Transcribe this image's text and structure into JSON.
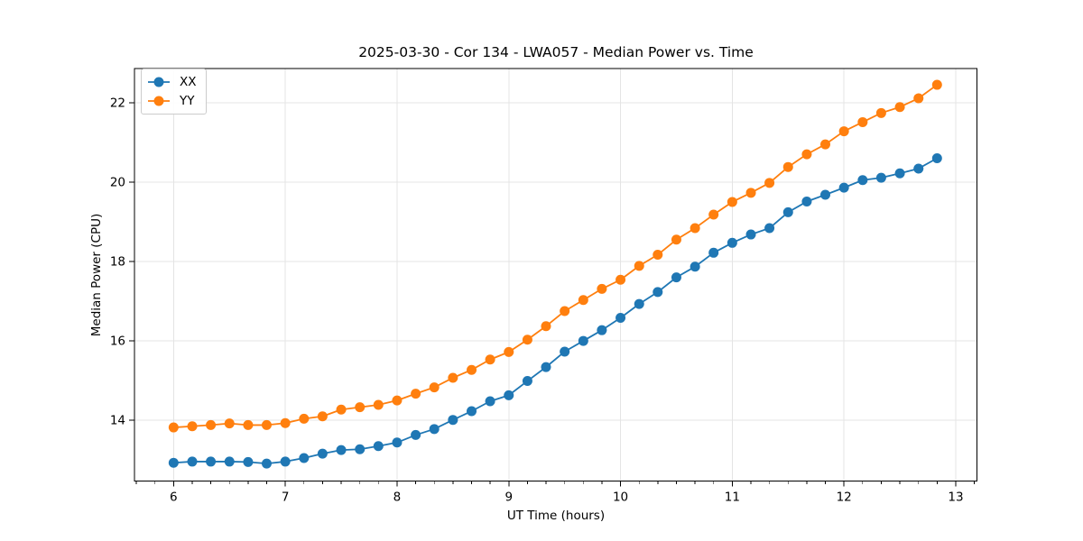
{
  "chart_data": {
    "type": "line",
    "title": "2025-03-30 - Cor 134 - LWA057 - Median Power vs. Time",
    "xlabel": "UT Time (hours)",
    "ylabel": "Median Power (CPU)",
    "xlim": [
      5.65,
      13.19
    ],
    "ylim": [
      12.47,
      22.86
    ],
    "xticks": [
      6,
      7,
      8,
      9,
      10,
      11,
      12,
      13
    ],
    "yticks": [
      14,
      16,
      18,
      20,
      22
    ],
    "minor_tick_step_x": 0.16667,
    "grid": true,
    "legend_position": "upper left",
    "x": [
      6.0,
      6.167,
      6.333,
      6.5,
      6.667,
      6.833,
      7.0,
      7.167,
      7.333,
      7.5,
      7.667,
      7.833,
      8.0,
      8.167,
      8.333,
      8.5,
      8.667,
      8.833,
      9.0,
      9.167,
      9.333,
      9.5,
      9.667,
      9.833,
      10.0,
      10.167,
      10.333,
      10.5,
      10.667,
      10.833,
      11.0,
      11.167,
      11.333,
      11.5,
      11.667,
      11.833,
      12.0,
      12.167,
      12.333,
      12.5,
      12.667,
      12.833
    ],
    "series": [
      {
        "name": "XX",
        "color": "#1f77b4",
        "values": [
          12.93,
          12.96,
          12.96,
          12.96,
          12.95,
          12.91,
          12.96,
          13.05,
          13.16,
          13.25,
          13.27,
          13.35,
          13.44,
          13.63,
          13.78,
          14.01,
          14.23,
          14.48,
          14.63,
          14.99,
          15.34,
          15.73,
          16.0,
          16.27,
          16.58,
          16.93,
          17.23,
          17.6,
          17.87,
          18.22,
          18.47,
          18.68,
          18.84,
          19.24,
          19.51,
          19.68,
          19.86,
          20.05,
          20.11,
          20.22,
          20.34,
          20.6
        ]
      },
      {
        "name": "YY",
        "color": "#ff7f0e",
        "values": [
          13.82,
          13.85,
          13.88,
          13.92,
          13.88,
          13.88,
          13.93,
          14.04,
          14.1,
          14.27,
          14.33,
          14.39,
          14.5,
          14.67,
          14.83,
          15.07,
          15.27,
          15.53,
          15.72,
          16.03,
          16.37,
          16.75,
          17.03,
          17.31,
          17.54,
          17.89,
          18.17,
          18.55,
          18.84,
          19.18,
          19.5,
          19.73,
          19.98,
          20.38,
          20.7,
          20.95,
          21.28,
          21.51,
          21.74,
          21.89,
          22.11,
          22.45
        ]
      }
    ]
  },
  "colors": {
    "background": "#ffffff",
    "grid": "#e4e4e4",
    "spine": "#000000",
    "text": "#000000"
  }
}
